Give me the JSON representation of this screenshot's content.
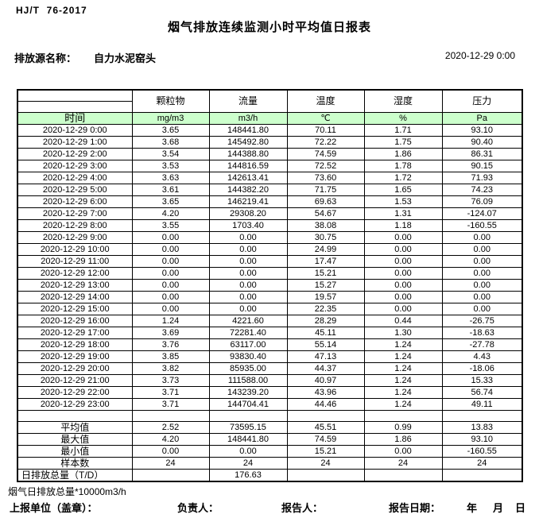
{
  "header": {
    "standard": "HJ/T  76-2017",
    "title": "烟气排放连续监测小时平均值日报表",
    "source_label": "排放源名称：",
    "source_name": "自力水泥窑头",
    "datetime": "2020-12-29 0:00"
  },
  "table": {
    "time_header": "时间",
    "columns": [
      {
        "name": "颗粒物",
        "unit": "mg/m3"
      },
      {
        "name": "流量",
        "unit": "m3/h"
      },
      {
        "name": "温度",
        "unit": "℃"
      },
      {
        "name": "湿度",
        "unit": "%"
      },
      {
        "name": "压力",
        "unit": "Pa"
      }
    ],
    "rows": [
      [
        "2020-12-29 0:00",
        "3.65",
        "148441.80",
        "70.11",
        "1.71",
        "93.10"
      ],
      [
        "2020-12-29 1:00",
        "3.68",
        "145492.80",
        "72.22",
        "1.75",
        "90.40"
      ],
      [
        "2020-12-29 2:00",
        "3.54",
        "144388.80",
        "74.59",
        "1.86",
        "86.31"
      ],
      [
        "2020-12-29 3:00",
        "3.53",
        "144816.59",
        "72.52",
        "1.78",
        "90.15"
      ],
      [
        "2020-12-29 4:00",
        "3.63",
        "142613.41",
        "73.60",
        "1.72",
        "71.93"
      ],
      [
        "2020-12-29 5:00",
        "3.61",
        "144382.20",
        "71.75",
        "1.65",
        "74.23"
      ],
      [
        "2020-12-29 6:00",
        "3.65",
        "146219.41",
        "69.63",
        "1.53",
        "76.09"
      ],
      [
        "2020-12-29 7:00",
        "4.20",
        "29308.20",
        "54.67",
        "1.31",
        "-124.07"
      ],
      [
        "2020-12-29 8:00",
        "3.55",
        "1703.40",
        "38.08",
        "1.18",
        "-160.55"
      ],
      [
        "2020-12-29 9:00",
        "0.00",
        "0.00",
        "30.75",
        "0.00",
        "0.00"
      ],
      [
        "2020-12-29 10:00",
        "0.00",
        "0.00",
        "24.99",
        "0.00",
        "0.00"
      ],
      [
        "2020-12-29 11:00",
        "0.00",
        "0.00",
        "17.47",
        "0.00",
        "0.00"
      ],
      [
        "2020-12-29 12:00",
        "0.00",
        "0.00",
        "15.21",
        "0.00",
        "0.00"
      ],
      [
        "2020-12-29 13:00",
        "0.00",
        "0.00",
        "15.27",
        "0.00",
        "0.00"
      ],
      [
        "2020-12-29 14:00",
        "0.00",
        "0.00",
        "19.57",
        "0.00",
        "0.00"
      ],
      [
        "2020-12-29 15:00",
        "0.00",
        "0.00",
        "22.35",
        "0.00",
        "0.00"
      ],
      [
        "2020-12-29 16:00",
        "1.24",
        "4221.60",
        "28.29",
        "0.44",
        "-26.75"
      ],
      [
        "2020-12-29 17:00",
        "3.69",
        "72281.40",
        "45.11",
        "1.30",
        "-18.63"
      ],
      [
        "2020-12-29 18:00",
        "3.76",
        "63117.00",
        "55.14",
        "1.24",
        "-27.78"
      ],
      [
        "2020-12-29 19:00",
        "3.85",
        "93830.40",
        "47.13",
        "1.24",
        "4.43"
      ],
      [
        "2020-12-29 20:00",
        "3.82",
        "85935.00",
        "44.37",
        "1.24",
        "-18.06"
      ],
      [
        "2020-12-29 21:00",
        "3.73",
        "111588.00",
        "40.97",
        "1.24",
        "15.33"
      ],
      [
        "2020-12-29 22:00",
        "3.71",
        "143239.20",
        "43.96",
        "1.24",
        "56.74"
      ],
      [
        "2020-12-29 23:00",
        "3.71",
        "144704.41",
        "44.46",
        "1.24",
        "49.11"
      ]
    ],
    "summary": [
      {
        "label": "平均值",
        "values": [
          "2.52",
          "73595.15",
          "45.51",
          "0.99",
          "13.83"
        ]
      },
      {
        "label": "最大值",
        "values": [
          "4.20",
          "148441.80",
          "74.59",
          "1.86",
          "93.10"
        ]
      },
      {
        "label": "最小值",
        "values": [
          "0.00",
          "0.00",
          "15.21",
          "0.00",
          "-160.55"
        ]
      },
      {
        "label": "样本数",
        "values": [
          "24",
          "24",
          "24",
          "24",
          "24"
        ]
      },
      {
        "label": "日排放总量（T/D）",
        "values": [
          "",
          "176.63",
          "",
          "",
          ""
        ]
      }
    ]
  },
  "footer": {
    "note": "烟气日排放总量*10000m3/h",
    "report_unit_label": "上报单位（盖章）：",
    "responsible_label": "负责人：",
    "reporter_label": "报告人：",
    "report_date_label": "报告日期：",
    "year_label": "年",
    "month_label": "月",
    "day_label": "日"
  },
  "colors": {
    "unit_row_green": "#ccffcc",
    "border": "#000000"
  }
}
